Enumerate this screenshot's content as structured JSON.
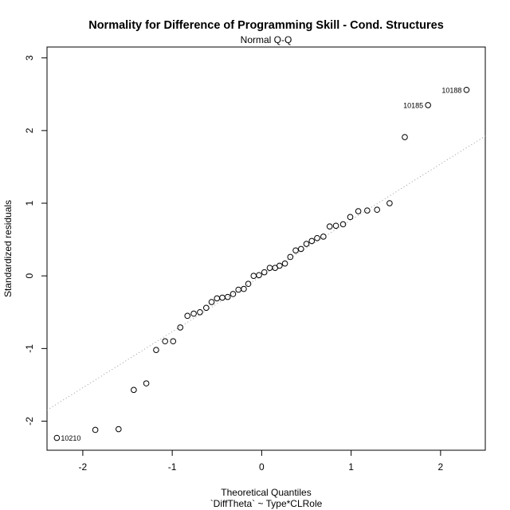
{
  "chart_data": {
    "type": "scatter",
    "title": "Normality for Difference of Programming Skill - Cond. Structures",
    "subtitle": "Normal Q-Q",
    "xlabel": "Theoretical Quantiles",
    "xlabel2": "`DiffTheta` ~ Type*CLRole",
    "ylabel": "Standardized residuals",
    "xlim": [
      -2.4,
      2.5
    ],
    "ylim": [
      -2.4,
      3.15
    ],
    "xticks": [
      -2,
      -1,
      0,
      1,
      2
    ],
    "xtick_labels": [
      "-2",
      "-1",
      "0",
      "1",
      "2"
    ],
    "yticks": [
      -2,
      -1,
      0,
      1,
      2,
      3
    ],
    "ytick_labels": [
      "-2",
      "-1",
      "0",
      "1",
      "2",
      "3"
    ],
    "grid": false,
    "reference_line": {
      "slope": 0.77,
      "intercept": 0.0,
      "style": "dotted",
      "color": "#999999"
    },
    "points": [
      {
        "x": -2.29,
        "y": -2.23,
        "label": "10210"
      },
      {
        "x": -1.86,
        "y": -2.12
      },
      {
        "x": -1.6,
        "y": -2.11
      },
      {
        "x": -1.43,
        "y": -1.57
      },
      {
        "x": -1.29,
        "y": -1.48
      },
      {
        "x": -1.18,
        "y": -1.02
      },
      {
        "x": -1.08,
        "y": -0.9
      },
      {
        "x": -0.99,
        "y": -0.9
      },
      {
        "x": -0.91,
        "y": -0.71
      },
      {
        "x": -0.83,
        "y": -0.55
      },
      {
        "x": -0.76,
        "y": -0.52
      },
      {
        "x": -0.69,
        "y": -0.5
      },
      {
        "x": -0.62,
        "y": -0.44
      },
      {
        "x": -0.56,
        "y": -0.36
      },
      {
        "x": -0.5,
        "y": -0.31
      },
      {
        "x": -0.44,
        "y": -0.3
      },
      {
        "x": -0.38,
        "y": -0.29
      },
      {
        "x": -0.32,
        "y": -0.25
      },
      {
        "x": -0.26,
        "y": -0.19
      },
      {
        "x": -0.2,
        "y": -0.18
      },
      {
        "x": -0.15,
        "y": -0.11
      },
      {
        "x": -0.09,
        "y": 0.0
      },
      {
        "x": -0.03,
        "y": 0.01
      },
      {
        "x": 0.03,
        "y": 0.05
      },
      {
        "x": 0.09,
        "y": 0.11
      },
      {
        "x": 0.15,
        "y": 0.11
      },
      {
        "x": 0.2,
        "y": 0.14
      },
      {
        "x": 0.26,
        "y": 0.17
      },
      {
        "x": 0.32,
        "y": 0.26
      },
      {
        "x": 0.38,
        "y": 0.35
      },
      {
        "x": 0.44,
        "y": 0.37
      },
      {
        "x": 0.5,
        "y": 0.44
      },
      {
        "x": 0.56,
        "y": 0.48
      },
      {
        "x": 0.62,
        "y": 0.52
      },
      {
        "x": 0.69,
        "y": 0.54
      },
      {
        "x": 0.76,
        "y": 0.68
      },
      {
        "x": 0.83,
        "y": 0.69
      },
      {
        "x": 0.91,
        "y": 0.71
      },
      {
        "x": 0.99,
        "y": 0.81
      },
      {
        "x": 1.08,
        "y": 0.89
      },
      {
        "x": 1.18,
        "y": 0.9
      },
      {
        "x": 1.29,
        "y": 0.91
      },
      {
        "x": 1.43,
        "y": 1.0
      },
      {
        "x": 1.6,
        "y": 1.91
      },
      {
        "x": 1.86,
        "y": 2.35,
        "label": "10185"
      },
      {
        "x": 2.29,
        "y": 2.56,
        "label": "10188"
      }
    ]
  }
}
